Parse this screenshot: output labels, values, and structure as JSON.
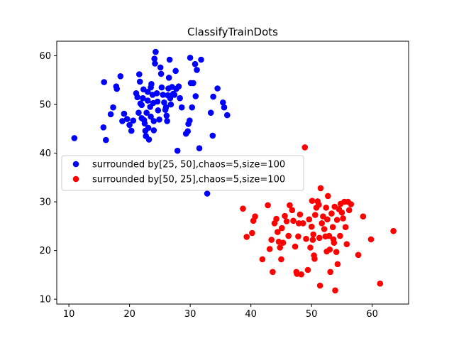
{
  "chart_data": {
    "type": "scatter",
    "title": "ClassifyTrainDots",
    "xlabel": "",
    "ylabel": "",
    "xlim": [
      8,
      66
    ],
    "ylim": [
      9,
      63
    ],
    "xticks": [
      10,
      20,
      30,
      40,
      50,
      60
    ],
    "yticks": [
      10,
      20,
      30,
      40,
      50,
      60
    ],
    "grid": false,
    "legend_position": "center-left",
    "series": [
      {
        "name": "surrounded by[25, 50],chaos=5,size=100",
        "color": "#0000ff",
        "points": [
          [
            10.9,
            43.1
          ],
          [
            15.8,
            54.6
          ],
          [
            15.7,
            45.3
          ],
          [
            16.1,
            42.7
          ],
          [
            16.9,
            48.0
          ],
          [
            17.3,
            49.4
          ],
          [
            17.8,
            53.7
          ],
          [
            17.9,
            53.2
          ],
          [
            18.5,
            55.8
          ],
          [
            18.8,
            46.6
          ],
          [
            19.1,
            48.1
          ],
          [
            19.6,
            47.0
          ],
          [
            20.0,
            45.8
          ],
          [
            20.3,
            44.6
          ],
          [
            20.6,
            46.7
          ],
          [
            21.1,
            52.3
          ],
          [
            21.3,
            51.5
          ],
          [
            21.5,
            48.3
          ],
          [
            21.6,
            56.2
          ],
          [
            21.7,
            54.7
          ],
          [
            21.8,
            50.2
          ],
          [
            22.0,
            49.9
          ],
          [
            22.0,
            47.2
          ],
          [
            22.2,
            51.3
          ],
          [
            22.3,
            53.1
          ],
          [
            22.4,
            46.8
          ],
          [
            22.5,
            46.1
          ],
          [
            22.6,
            44.6
          ],
          [
            22.7,
            43.5
          ],
          [
            22.8,
            48.3
          ],
          [
            23.0,
            52.6
          ],
          [
            23.0,
            50.8
          ],
          [
            23.1,
            45.2
          ],
          [
            23.2,
            42.8
          ],
          [
            23.4,
            49.5
          ],
          [
            23.5,
            47.5
          ],
          [
            23.5,
            53.5
          ],
          [
            23.6,
            54.2
          ],
          [
            23.8,
            52.0
          ],
          [
            23.9,
            50.3
          ],
          [
            24.0,
            46.6
          ],
          [
            24.0,
            44.7
          ],
          [
            24.1,
            59.4
          ],
          [
            24.2,
            58.4
          ],
          [
            24.3,
            60.8
          ],
          [
            24.5,
            52.3
          ],
          [
            24.6,
            50.6
          ],
          [
            24.7,
            48.8
          ],
          [
            24.9,
            46.9
          ],
          [
            25.1,
            57.6
          ],
          [
            25.2,
            56.3
          ],
          [
            25.3,
            53.5
          ],
          [
            25.5,
            52.0
          ],
          [
            25.7,
            50.4
          ],
          [
            25.9,
            48.9
          ],
          [
            26.0,
            49.4
          ],
          [
            26.1,
            47.7
          ],
          [
            26.2,
            46.6
          ],
          [
            26.3,
            51.9
          ],
          [
            26.4,
            53.3
          ],
          [
            26.5,
            55.5
          ],
          [
            26.6,
            59.2
          ],
          [
            26.7,
            51.3
          ],
          [
            26.8,
            50.0
          ],
          [
            27.0,
            53.6
          ],
          [
            27.2,
            52.2
          ],
          [
            27.4,
            52.0
          ],
          [
            27.6,
            56.9
          ],
          [
            27.7,
            53.2
          ],
          [
            27.9,
            40.5
          ],
          [
            28.1,
            53.7
          ],
          [
            28.3,
            51.3
          ],
          [
            28.6,
            49.4
          ],
          [
            29.3,
            44.0
          ],
          [
            29.6,
            44.5
          ],
          [
            29.7,
            46.0
          ],
          [
            29.9,
            46.7
          ],
          [
            30.0,
            59.6
          ],
          [
            30.1,
            54.4
          ],
          [
            30.3,
            49.4
          ],
          [
            30.5,
            54.4
          ],
          [
            30.8,
            58.3
          ],
          [
            30.9,
            51.7
          ],
          [
            31.1,
            57.1
          ],
          [
            31.5,
            41.0
          ],
          [
            31.8,
            59.2
          ],
          [
            32.8,
            31.7
          ],
          [
            33.4,
            48.3
          ],
          [
            33.7,
            43.6
          ],
          [
            33.8,
            51.6
          ],
          [
            34.5,
            53.3
          ],
          [
            35.4,
            50.4
          ],
          [
            35.6,
            49.4
          ],
          [
            36.1,
            47.8
          ]
        ]
      },
      {
        "name": "surrounded by[50, 25],chaos=5,size=100",
        "color": "#ff0000",
        "points": [
          [
            38.7,
            28.6
          ],
          [
            39.3,
            22.8
          ],
          [
            40.2,
            23.6
          ],
          [
            40.4,
            26.1
          ],
          [
            40.7,
            27.0
          ],
          [
            41.9,
            18.2
          ],
          [
            42.8,
            29.3
          ],
          [
            43.1,
            20.3
          ],
          [
            43.4,
            22.2
          ],
          [
            43.6,
            15.6
          ],
          [
            43.9,
            25.6
          ],
          [
            44.2,
            26.5
          ],
          [
            44.4,
            23.8
          ],
          [
            44.6,
            21.8
          ],
          [
            44.8,
            20.6
          ],
          [
            45.0,
            18.2
          ],
          [
            45.1,
            24.6
          ],
          [
            45.3,
            21.6
          ],
          [
            45.6,
            27.1
          ],
          [
            45.9,
            26.0
          ],
          [
            46.2,
            23.0
          ],
          [
            46.4,
            29.3
          ],
          [
            46.8,
            28.3
          ],
          [
            47.0,
            26.1
          ],
          [
            47.3,
            20.8
          ],
          [
            47.5,
            15.6
          ],
          [
            47.6,
            15.2
          ],
          [
            47.8,
            22.9
          ],
          [
            47.9,
            25.6
          ],
          [
            48.1,
            27.4
          ],
          [
            48.3,
            15.1
          ],
          [
            48.6,
            25.6
          ],
          [
            48.9,
            41.2
          ],
          [
            49.1,
            22.4
          ],
          [
            49.4,
            16.0
          ],
          [
            49.6,
            26.4
          ],
          [
            49.8,
            20.6
          ],
          [
            50.0,
            24.9
          ],
          [
            50.1,
            30.2
          ],
          [
            50.2,
            22.2
          ],
          [
            50.3,
            23.3
          ],
          [
            50.4,
            19.0
          ],
          [
            50.5,
            18.3
          ],
          [
            50.6,
            27.3
          ],
          [
            50.8,
            28.8
          ],
          [
            51.0,
            30.1
          ],
          [
            51.2,
            29.4
          ],
          [
            51.3,
            22.6
          ],
          [
            51.4,
            12.8
          ],
          [
            51.5,
            32.8
          ],
          [
            51.7,
            25.6
          ],
          [
            51.9,
            27.0
          ],
          [
            52.1,
            24.4
          ],
          [
            52.3,
            22.9
          ],
          [
            52.4,
            28.8
          ],
          [
            52.5,
            19.8
          ],
          [
            52.6,
            26.4
          ],
          [
            52.7,
            31.2
          ],
          [
            52.9,
            23.0
          ],
          [
            53.0,
            20.2
          ],
          [
            53.1,
            15.6
          ],
          [
            53.3,
            27.6
          ],
          [
            53.5,
            24.8
          ],
          [
            53.6,
            22.3
          ],
          [
            53.7,
            21.6
          ],
          [
            53.8,
            29.0
          ],
          [
            53.9,
            11.8
          ],
          [
            54.1,
            19.7
          ],
          [
            54.2,
            26.3
          ],
          [
            54.3,
            17.2
          ],
          [
            54.5,
            28.5
          ],
          [
            54.7,
            23.0
          ],
          [
            54.8,
            29.6
          ],
          [
            55.0,
            27.8
          ],
          [
            55.2,
            26.6
          ],
          [
            55.4,
            30.0
          ],
          [
            55.6,
            24.8
          ],
          [
            55.8,
            21.3
          ],
          [
            56.0,
            30.0
          ],
          [
            56.2,
            28.3
          ],
          [
            56.5,
            29.5
          ],
          [
            57.7,
            19.1
          ],
          [
            58.5,
            27.0
          ],
          [
            59.8,
            22.3
          ],
          [
            61.3,
            13.2
          ],
          [
            63.5,
            24.0
          ]
        ]
      }
    ]
  }
}
